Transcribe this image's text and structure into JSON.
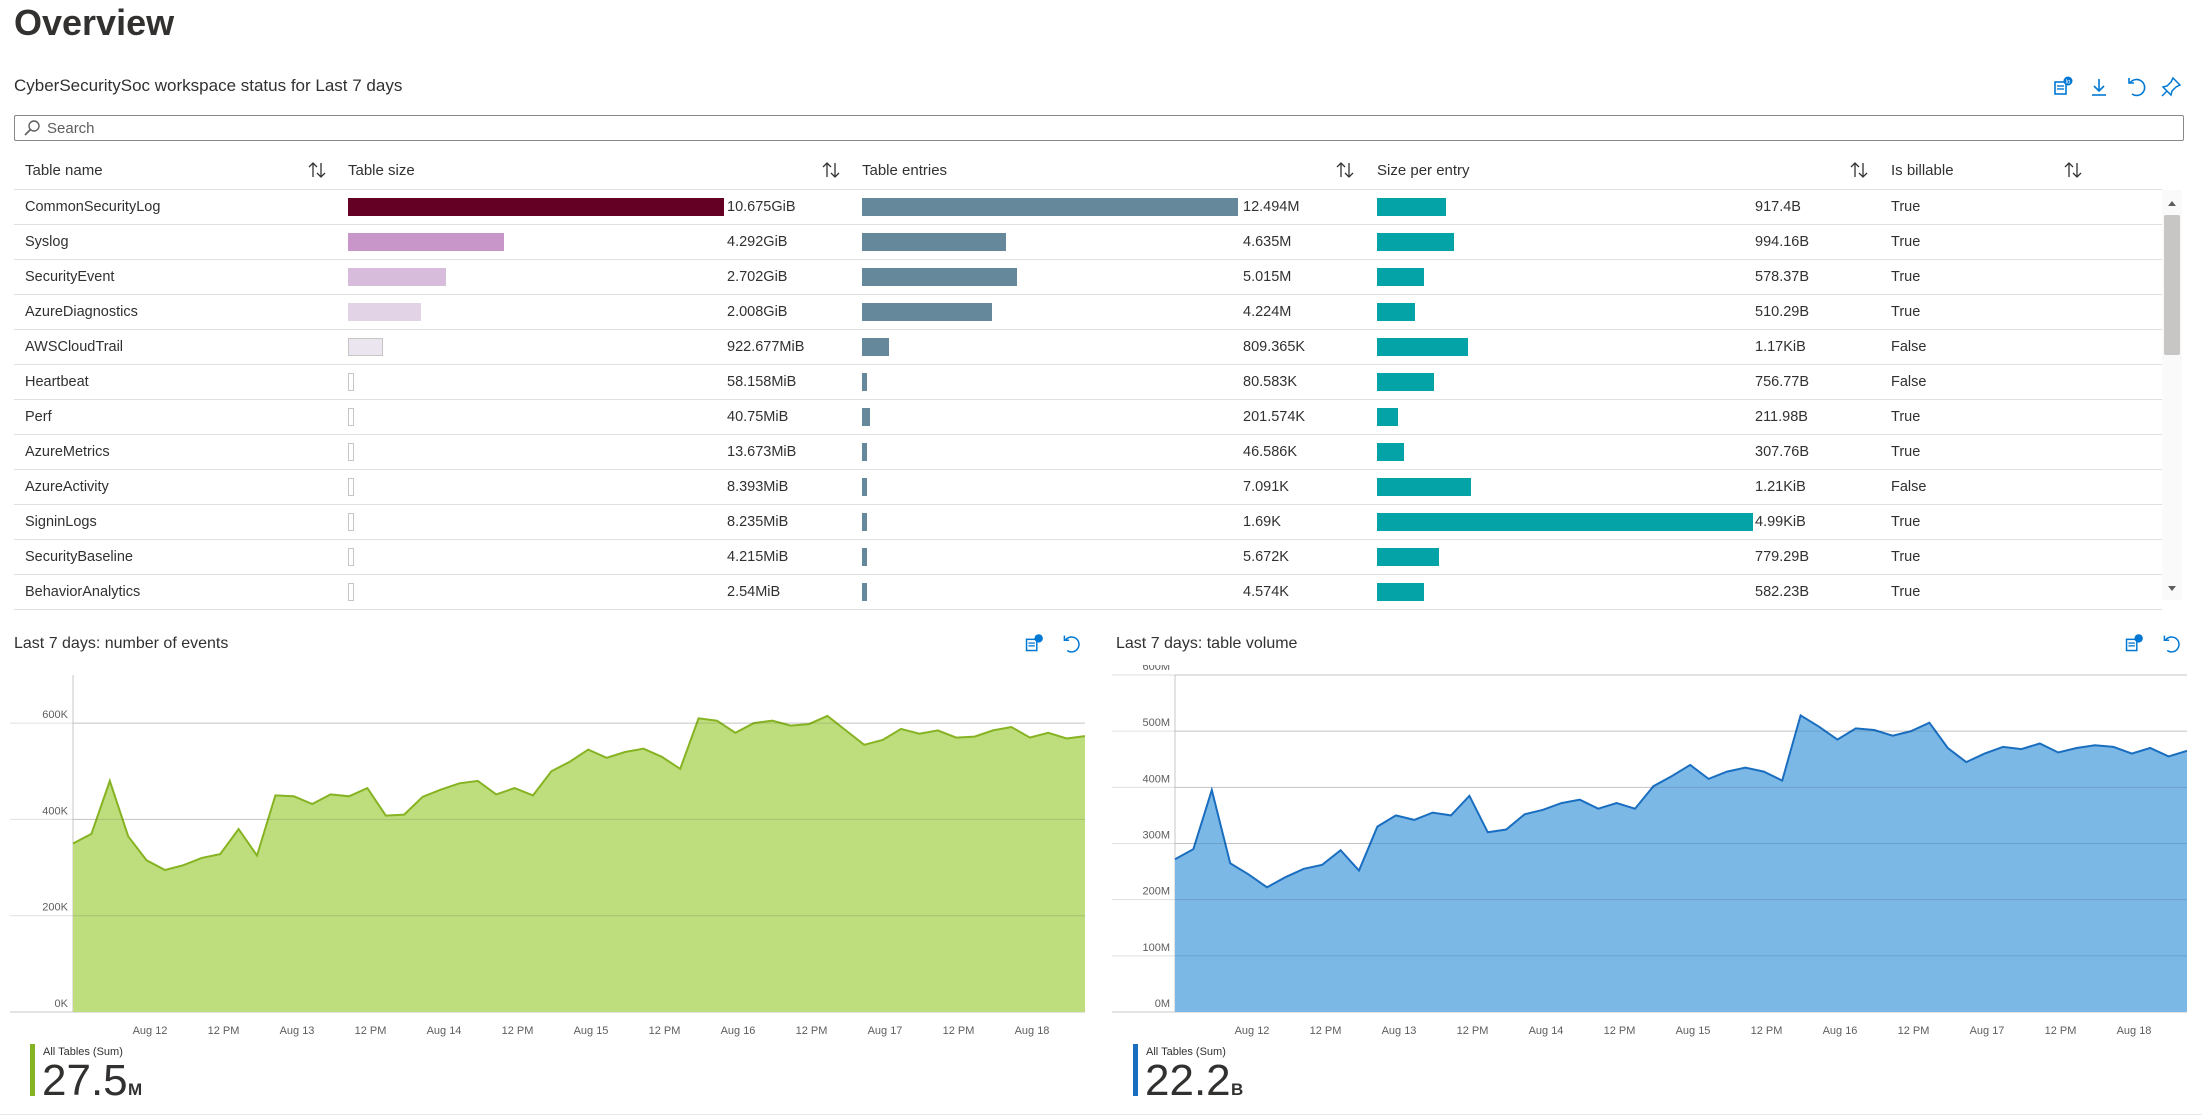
{
  "page": {
    "title": "Overview"
  },
  "grid": {
    "title": "CyberSecuritySoc workspace status for Last 7 days",
    "search_placeholder": "Search",
    "columns": [
      "Table name",
      "Table size",
      "Table entries",
      "Size per entry",
      "Is billable"
    ],
    "toolbar": [
      "open-in-logs-icon",
      "download-icon",
      "undo-icon",
      "pin-icon"
    ],
    "colors": {
      "size_palette": [
        "#640024",
        "#c996c9",
        "#d8bcdc",
        "#e2d3e6",
        "#ebe5ef",
        "#ffffff"
      ],
      "entries": "#66889b",
      "per_entry": "#04a3a8",
      "outline": "#c8c6c4"
    },
    "rows": [
      {
        "name": "CommonSecurityLog",
        "size": "10.675GiB",
        "size_frac": 1.0,
        "entries": "12.494M",
        "entries_frac": 1.0,
        "per_entry": "917.4B",
        "per_entry_frac": 0.184,
        "billable": "True"
      },
      {
        "name": "Syslog",
        "size": "4.292GiB",
        "size_frac": 0.415,
        "entries": "4.635M",
        "entries_frac": 0.383,
        "per_entry": "994.16B",
        "per_entry_frac": 0.205,
        "billable": "True"
      },
      {
        "name": "SecurityEvent",
        "size": "2.702GiB",
        "size_frac": 0.261,
        "entries": "5.015M",
        "entries_frac": 0.412,
        "per_entry": "578.37B",
        "per_entry_frac": 0.124,
        "billable": "True"
      },
      {
        "name": "AzureDiagnostics",
        "size": "2.008GiB",
        "size_frac": 0.193,
        "entries": "4.224M",
        "entries_frac": 0.346,
        "per_entry": "510.29B",
        "per_entry_frac": 0.102,
        "billable": "True"
      },
      {
        "name": "AWSCloudTrail",
        "size": "922.677MiB",
        "size_frac": 0.094,
        "entries": "809.365K",
        "entries_frac": 0.072,
        "per_entry": "1.17KiB",
        "per_entry_frac": 0.243,
        "billable": "False"
      },
      {
        "name": "Heartbeat",
        "size": "58.158MiB",
        "size_frac": 0.01,
        "entries": "80.583K",
        "entries_frac": 0.013,
        "per_entry": "756.77B",
        "per_entry_frac": 0.152,
        "billable": "False"
      },
      {
        "name": "Perf",
        "size": "40.75MiB",
        "size_frac": 0.008,
        "entries": "201.574K",
        "entries_frac": 0.021,
        "per_entry": "211.98B",
        "per_entry_frac": 0.055,
        "billable": "True"
      },
      {
        "name": "AzureMetrics",
        "size": "13.673MiB",
        "size_frac": 0.005,
        "entries": "46.586K",
        "entries_frac": 0.01,
        "per_entry": "307.76B",
        "per_entry_frac": 0.072,
        "billable": "True"
      },
      {
        "name": "AzureActivity",
        "size": "8.393MiB",
        "size_frac": 0.005,
        "entries": "7.091K",
        "entries_frac": 0.01,
        "per_entry": "1.21KiB",
        "per_entry_frac": 0.25,
        "billable": "False"
      },
      {
        "name": "SigninLogs",
        "size": "8.235MiB",
        "size_frac": 0.005,
        "entries": "1.69K",
        "entries_frac": 0.01,
        "per_entry": "4.99KiB",
        "per_entry_frac": 1.0,
        "billable": "True"
      },
      {
        "name": "SecurityBaseline",
        "size": "4.215MiB",
        "size_frac": 0.005,
        "entries": "5.672K",
        "entries_frac": 0.01,
        "per_entry": "779.29B",
        "per_entry_frac": 0.165,
        "billable": "True"
      },
      {
        "name": "BehaviorAnalytics",
        "size": "2.54MiB",
        "size_frac": 0.005,
        "entries": "4.574K",
        "entries_frac": 0.01,
        "per_entry": "582.23B",
        "per_entry_frac": 0.124,
        "billable": "True"
      }
    ]
  },
  "events_panel": {
    "title": "Last 7 days: number of events",
    "legend_name": "All Tables (Sum)",
    "legend_value": "27.5",
    "legend_unit": "M",
    "color_fill": "#bedd7d",
    "color_line": "#86b322",
    "color_legend": "#86b322"
  },
  "volume_panel": {
    "title": "Last 7 days: table volume",
    "legend_name": "All Tables (Sum)",
    "legend_value": "22.2",
    "legend_unit": "B",
    "color_fill": "#7cb8e6",
    "color_line": "#1a6ec0",
    "color_legend": "#1a6ec0"
  },
  "chart_data": [
    {
      "type": "area",
      "title": "Last 7 days: number of events",
      "series": [
        {
          "name": "All Tables (Sum)",
          "values": [
            350000,
            370000,
            480000,
            365000,
            315000,
            295000,
            305000,
            320000,
            328000,
            380000,
            325000,
            450000,
            448000,
            432000,
            452000,
            448000,
            465000,
            408000,
            410000,
            447000,
            462000,
            475000,
            480000,
            452000,
            465000,
            450000,
            500000,
            520000,
            545000,
            528000,
            540000,
            547000,
            530000,
            505000,
            610000,
            605000,
            580000,
            600000,
            605000,
            595000,
            598000,
            615000,
            585000,
            555000,
            565000,
            588000,
            578000,
            585000,
            570000,
            572000,
            585000,
            592000,
            570000,
            580000,
            568000,
            573000
          ]
        }
      ],
      "x_ticks": [
        "Aug 12",
        "12 PM",
        "Aug 13",
        "12 PM",
        "Aug 14",
        "12 PM",
        "Aug 15",
        "12 PM",
        "Aug 16",
        "12 PM",
        "Aug 17",
        "12 PM",
        "Aug 18"
      ],
      "y_ticks": [
        "0K",
        "200K",
        "400K",
        "600K"
      ],
      "ylim": [
        0,
        700000
      ],
      "grid": true
    },
    {
      "type": "area",
      "title": "Last 7 days: table volume",
      "series": [
        {
          "name": "All Tables (Sum)",
          "values": [
            272000000,
            290000000,
            395000000,
            265000000,
            245000000,
            222000000,
            240000000,
            255000000,
            262000000,
            288000000,
            252000000,
            330000000,
            350000000,
            342000000,
            355000000,
            350000000,
            385000000,
            320000000,
            325000000,
            352000000,
            360000000,
            372000000,
            378000000,
            362000000,
            372000000,
            362000000,
            402000000,
            420000000,
            440000000,
            415000000,
            428000000,
            435000000,
            428000000,
            412000000,
            528000000,
            508000000,
            485000000,
            505000000,
            502000000,
            492000000,
            500000000,
            515000000,
            470000000,
            445000000,
            460000000,
            472000000,
            468000000,
            478000000,
            462000000,
            470000000,
            475000000,
            472000000,
            460000000,
            470000000,
            455000000,
            465000000
          ]
        }
      ],
      "x_ticks": [
        "Aug 12",
        "12 PM",
        "Aug 13",
        "12 PM",
        "Aug 14",
        "12 PM",
        "Aug 15",
        "12 PM",
        "Aug 16",
        "12 PM",
        "Aug 17",
        "12 PM",
        "Aug 18"
      ],
      "y_ticks": [
        "0M",
        "100M",
        "200M",
        "300M",
        "400M",
        "500M",
        "600M"
      ],
      "ylim": [
        0,
        600000000
      ],
      "grid": true
    }
  ]
}
